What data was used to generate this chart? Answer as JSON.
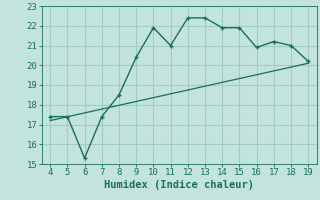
{
  "xlabel": "Humidex (Indice chaleur)",
  "bg_color": "#c2e4dc",
  "grid_color": "#a0ccc4",
  "line_color": "#1a6e5e",
  "x_data": [
    4,
    5,
    6,
    7,
    8,
    9,
    10,
    11,
    12,
    13,
    14,
    15,
    16,
    17,
    18,
    19
  ],
  "y_data": [
    17.4,
    17.4,
    15.3,
    17.4,
    18.5,
    20.4,
    21.9,
    21.0,
    22.4,
    22.4,
    21.9,
    21.9,
    20.9,
    21.2,
    21.0,
    20.2
  ],
  "trend_x": [
    4,
    19
  ],
  "trend_y": [
    17.2,
    20.1
  ],
  "xlim": [
    3.5,
    19.5
  ],
  "ylim": [
    15,
    23
  ],
  "yticks": [
    15,
    16,
    17,
    18,
    19,
    20,
    21,
    22,
    23
  ],
  "xticks": [
    4,
    5,
    6,
    7,
    8,
    9,
    10,
    11,
    12,
    13,
    14,
    15,
    16,
    17,
    18,
    19
  ],
  "tick_fontsize": 6.5,
  "label_fontsize": 7.5
}
